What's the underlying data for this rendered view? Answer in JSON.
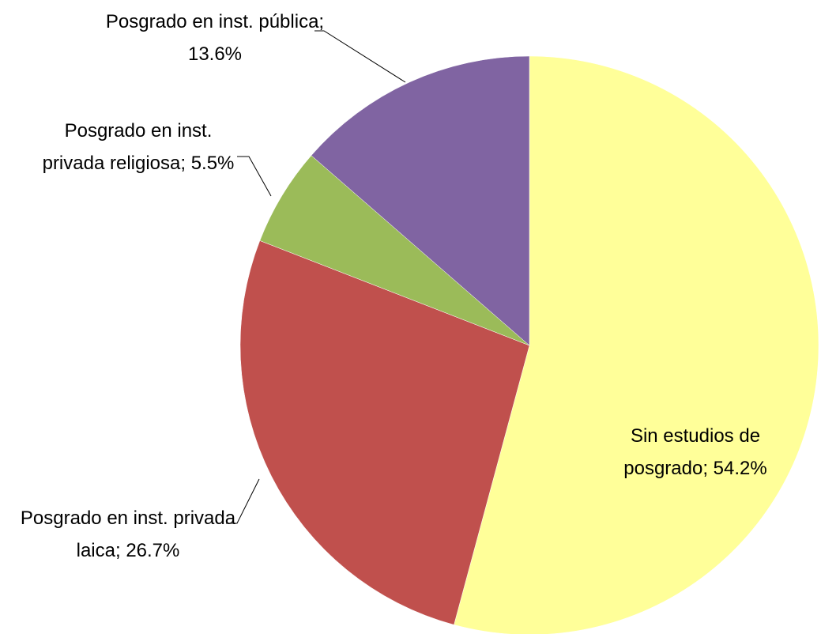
{
  "chart_data": {
    "type": "pie",
    "categories": [
      "Sin estudios de posgrado",
      "Posgrado en inst. privada laica",
      "Posgrado en inst. privada religiosa",
      "Posgrado en inst. pública"
    ],
    "values": [
      54.2,
      26.7,
      5.5,
      13.6
    ],
    "value_labels": [
      "Sin estudios de posgrado; 54.2%",
      "Posgrado en inst. privada laica; 26.7%",
      "Posgrado en inst. privada religiosa; 5.5%",
      "Posgrado en inst. pública; 13.6%"
    ],
    "colors": [
      "#ffff99",
      "#c0504d",
      "#9bbb59",
      "#8064a2"
    ]
  }
}
